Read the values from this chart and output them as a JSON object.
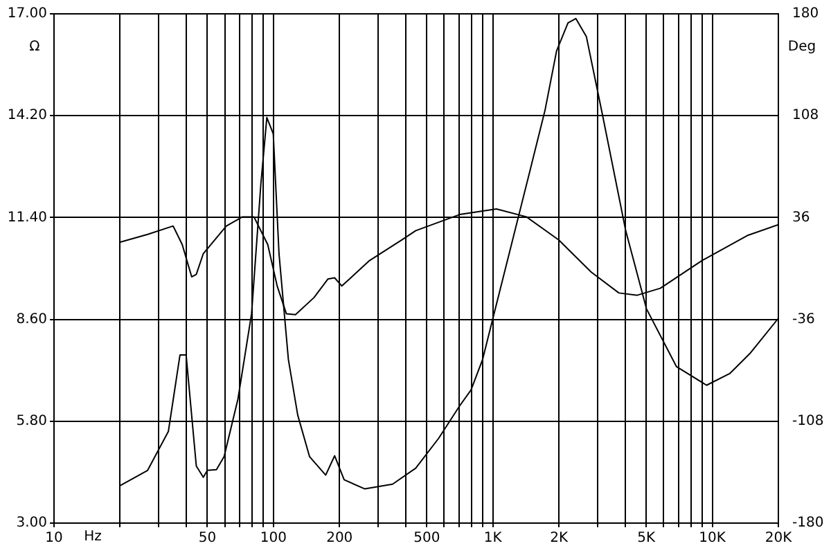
{
  "chart_data": {
    "type": "line",
    "xlabel": "Hz",
    "ylabel": "Ω",
    "y2label": "Deg",
    "log": "x",
    "grid": true,
    "legend": false,
    "marker": "none",
    "line_style": "solid",
    "xlim": [
      10,
      20000
    ],
    "xticks": [
      10,
      {
        "value": 20,
        "label": null
      },
      {
        "value": 30,
        "label": null
      },
      {
        "value": 40,
        "label": null
      },
      50,
      {
        "value": 60,
        "label": null
      },
      {
        "value": 70,
        "label": null
      },
      {
        "value": 80,
        "label": null
      },
      {
        "value": 90,
        "label": null
      },
      100,
      200,
      {
        "value": 300,
        "label": null
      },
      {
        "value": 400,
        "label": null
      },
      500,
      {
        "value": 600,
        "label": null
      },
      {
        "value": 700,
        "label": null
      },
      {
        "value": 800,
        "label": null
      },
      {
        "value": 900,
        "label": null
      },
      {
        "value": 1000,
        "label": "1K"
      },
      {
        "value": 2000,
        "label": "2K"
      },
      {
        "value": 3000,
        "label": null
      },
      {
        "value": 4000,
        "label": null
      },
      {
        "value": 5000,
        "label": "5K"
      },
      {
        "value": 6000,
        "label": null
      },
      {
        "value": 7000,
        "label": null
      },
      {
        "value": 8000,
        "label": null
      },
      {
        "value": 9000,
        "label": null
      },
      {
        "value": 10000,
        "label": "10K"
      },
      {
        "value": 20000,
        "label": "20K"
      }
    ],
    "ylim": [
      3,
      17
    ],
    "yticks": [
      {
        "value": 3,
        "label": "3.00"
      },
      {
        "value": 5.8,
        "label": "5.80"
      },
      {
        "value": 8.6,
        "label": "8.60"
      },
      {
        "value": 11.4,
        "label": "11.40"
      },
      {
        "value": 14.2,
        "label": "14.20"
      },
      {
        "value": 17,
        "label": "17.00"
      }
    ],
    "y2lim": [
      -180,
      180
    ],
    "y2ticks": [
      -180,
      -108,
      -36,
      36,
      108,
      180
    ],
    "series": [
      {
        "color": "#000000",
        "axis": "y",
        "x": [
          20,
          26.7,
          33.2,
          37.5,
          40,
          44.5,
          47.9,
          50,
          55,
          59.6,
          68.9,
          79.5,
          87.6,
          93.3,
          99.8,
          106,
          117,
          129,
          146,
          173,
          190,
          210,
          261,
          349,
          445,
          566,
          705,
          795,
          897,
          989,
          1172,
          1458,
          1727,
          1951,
          2199,
          2388,
          2668,
          3162,
          4030,
          5012,
          6867,
          9419,
          12000,
          14930,
          20000
        ],
        "values": [
          4.03,
          4.45,
          5.52,
          7.62,
          7.62,
          4.57,
          4.26,
          4.45,
          4.47,
          4.83,
          6.41,
          8.76,
          12.31,
          14.15,
          13.7,
          10.41,
          7.49,
          5.97,
          4.83,
          4.32,
          4.85,
          4.19,
          3.94,
          4.07,
          4.51,
          5.33,
          6.22,
          6.66,
          7.49,
          8.51,
          10.28,
          12.56,
          14.34,
          15.98,
          16.75,
          16.87,
          16.37,
          14.21,
          11.04,
          8.89,
          7.3,
          6.79,
          7.11,
          7.68,
          8.63
        ]
      },
      {
        "color": "#000000",
        "axis": "y2",
        "x": [
          20,
          26.7,
          34.9,
          38.4,
          42.4,
          44.5,
          47.9,
          61,
          72.3,
          81.5,
          94.2,
          104,
          114.5,
          126,
          153,
          177,
          190,
          205,
          274,
          385,
          445,
          705,
          1038,
          1422,
          1995,
          2807,
          3751,
          4550,
          5794,
          8973,
          14550,
          20000
        ],
        "values": [
          18.6,
          24.1,
          30,
          16.9,
          -5.9,
          -4.2,
          10.5,
          30,
          36.5,
          36.5,
          16.9,
          -12.4,
          -32,
          -32.6,
          -20.6,
          -7.5,
          -6.6,
          -12.4,
          5.6,
          20.2,
          26.7,
          38.1,
          42.1,
          36.5,
          20.2,
          -2.6,
          -17.3,
          -18.9,
          -14,
          5.6,
          23.5,
          31
        ]
      }
    ]
  }
}
